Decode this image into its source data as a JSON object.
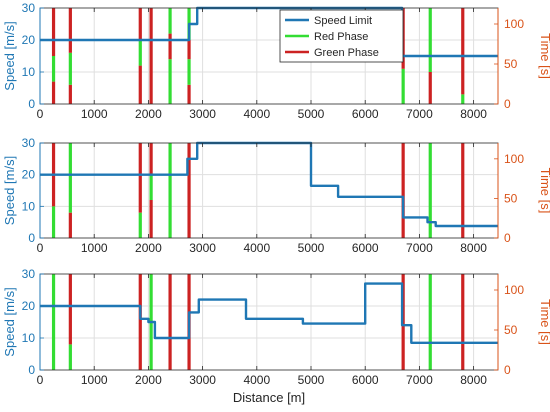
{
  "chart_data": [
    {
      "type": "line",
      "xlabel": "",
      "ylabel": "Speed [m/s]",
      "y2label": "Time [s]",
      "xlim": [
        0,
        8450
      ],
      "ylim": [
        0,
        30
      ],
      "y2lim": [
        0,
        120
      ],
      "xticks": [
        "0",
        "1000",
        "2000",
        "3000",
        "4000",
        "5000",
        "6000",
        "7000",
        "8000"
      ],
      "yticks": [
        "0",
        "10",
        "20",
        "30"
      ],
      "y2ticks": [
        "0",
        "50",
        "100"
      ],
      "grid": true,
      "legend_position": "top-right",
      "legend": [
        "Speed Limit",
        "Red Phase",
        "Green Phase"
      ],
      "speed_limit": {
        "x": [
          0,
          2750,
          2750,
          2900,
          2900,
          6680,
          6680,
          8450
        ],
        "y": [
          20,
          20,
          25,
          25,
          30,
          30,
          15,
          15
        ]
      },
      "signals": [
        {
          "x": 250,
          "pattern": [
            [
              "r",
              0,
              7
            ],
            [
              "g",
              7,
              15
            ],
            [
              "r",
              15,
              30
            ]
          ]
        },
        {
          "x": 560,
          "pattern": [
            [
              "r",
              0,
              6
            ],
            [
              "g",
              6,
              16
            ],
            [
              "r",
              16,
              30
            ]
          ]
        },
        {
          "x": 1850,
          "pattern": [
            [
              "r",
              0,
              12
            ],
            [
              "g",
              12,
              20
            ],
            [
              "r",
              20,
              30
            ]
          ]
        },
        {
          "x": 2050,
          "pattern": [
            [
              "r",
              0,
              30
            ]
          ]
        },
        {
          "x": 2400,
          "pattern": [
            [
              "g",
              0,
              14
            ],
            [
              "r",
              14,
              22
            ],
            [
              "g",
              22,
              30
            ]
          ]
        },
        {
          "x": 2750,
          "pattern": [
            [
              "r",
              0,
              6
            ],
            [
              "g",
              6,
              14
            ],
            [
              "r",
              14,
              20
            ],
            [
              "g",
              20,
              30
            ]
          ]
        },
        {
          "x": 6700,
          "pattern": [
            [
              "g",
              0,
              11
            ],
            [
              "r",
              11,
              30
            ]
          ]
        },
        {
          "x": 7200,
          "pattern": [
            [
              "r",
              0,
              10
            ],
            [
              "g",
              10,
              30
            ]
          ]
        },
        {
          "x": 7800,
          "pattern": [
            [
              "g",
              0,
              3
            ],
            [
              "r",
              3,
              30
            ]
          ]
        }
      ]
    },
    {
      "type": "line",
      "xlabel": "",
      "ylabel": "Speed [m/s]",
      "y2label": "Time [s]",
      "xlim": [
        0,
        8450
      ],
      "ylim": [
        0,
        30
      ],
      "y2lim": [
        0,
        120
      ],
      "xticks": [
        "0",
        "1000",
        "2000",
        "3000",
        "4000",
        "5000",
        "6000",
        "7000",
        "8000"
      ],
      "yticks": [
        "0",
        "10",
        "20",
        "30"
      ],
      "y2ticks": [
        "0",
        "50",
        "100"
      ],
      "grid": true,
      "speed_limit": {
        "x": [
          0,
          2720,
          2720,
          2900,
          2900,
          5000,
          5000,
          5500,
          5500,
          6700,
          6700,
          7150,
          7150,
          7300,
          7300,
          8450
        ],
        "y": [
          20,
          20,
          25,
          25,
          30,
          30,
          16.5,
          16.5,
          13,
          13,
          6.5,
          6.5,
          5,
          5,
          3.8,
          3.8
        ]
      },
      "signals": [
        {
          "x": 250,
          "pattern": [
            [
              "g",
              0,
              10
            ],
            [
              "r",
              10,
              30
            ]
          ]
        },
        {
          "x": 560,
          "pattern": [
            [
              "r",
              0,
              8
            ],
            [
              "g",
              8,
              30
            ]
          ]
        },
        {
          "x": 1850,
          "pattern": [
            [
              "g",
              0,
              8
            ],
            [
              "r",
              8,
              30
            ]
          ]
        },
        {
          "x": 2050,
          "pattern": [
            [
              "r",
              0,
              12
            ],
            [
              "g",
              12,
              20
            ],
            [
              "r",
              20,
              30
            ]
          ]
        },
        {
          "x": 2400,
          "pattern": [
            [
              "g",
              0,
              30
            ]
          ]
        },
        {
          "x": 2750,
          "pattern": [
            [
              "r",
              0,
              30
            ]
          ]
        },
        {
          "x": 6700,
          "pattern": [
            [
              "r",
              0,
              30
            ]
          ]
        },
        {
          "x": 7200,
          "pattern": [
            [
              "g",
              0,
              30
            ]
          ]
        },
        {
          "x": 7800,
          "pattern": [
            [
              "r",
              0,
              30
            ]
          ]
        }
      ]
    },
    {
      "type": "line",
      "xlabel": "Distance [m]",
      "ylabel": "Speed [m/s]",
      "y2label": "Time [s]",
      "xlim": [
        0,
        8450
      ],
      "ylim": [
        0,
        30
      ],
      "y2lim": [
        0,
        120
      ],
      "xticks": [
        "0",
        "1000",
        "2000",
        "3000",
        "4000",
        "5000",
        "6000",
        "7000",
        "8000"
      ],
      "yticks": [
        "0",
        "10",
        "20",
        "30"
      ],
      "y2ticks": [
        "0",
        "50",
        "100"
      ],
      "grid": true,
      "speed_limit": {
        "x": [
          0,
          1850,
          1850,
          2000,
          2000,
          2120,
          2120,
          2750,
          2750,
          2930,
          2930,
          3800,
          3800,
          4850,
          4850,
          6000,
          6000,
          6680,
          6680,
          6850,
          6850,
          8450
        ],
        "y": [
          20,
          20,
          16,
          16,
          15,
          15,
          10,
          10,
          18,
          18,
          22,
          22,
          16,
          16,
          14.5,
          14.5,
          27,
          27,
          14,
          14,
          8.5,
          8.5
        ]
      },
      "signals": [
        {
          "x": 250,
          "pattern": [
            [
              "g",
              0,
              30
            ]
          ]
        },
        {
          "x": 560,
          "pattern": [
            [
              "g",
              0,
              8
            ],
            [
              "r",
              8,
              30
            ]
          ]
        },
        {
          "x": 1850,
          "pattern": [
            [
              "r",
              0,
              30
            ]
          ]
        },
        {
          "x": 2050,
          "pattern": [
            [
              "g",
              0,
              30
            ]
          ]
        },
        {
          "x": 2400,
          "pattern": [
            [
              "r",
              0,
              30
            ]
          ]
        },
        {
          "x": 2750,
          "pattern": [
            [
              "r",
              0,
              30
            ]
          ]
        },
        {
          "x": 6700,
          "pattern": [
            [
              "r",
              0,
              30
            ]
          ]
        },
        {
          "x": 7200,
          "pattern": [
            [
              "g",
              0,
              30
            ]
          ]
        },
        {
          "x": 7800,
          "pattern": [
            [
              "r",
              0,
              30
            ]
          ]
        }
      ]
    }
  ],
  "colors": {
    "speed_limit": "#1f77b4",
    "red_phase_legend": "#33dd33",
    "green_phase_legend": "#cc2222",
    "left_axis": "#1f77b4",
    "right_axis": "#d95319"
  }
}
